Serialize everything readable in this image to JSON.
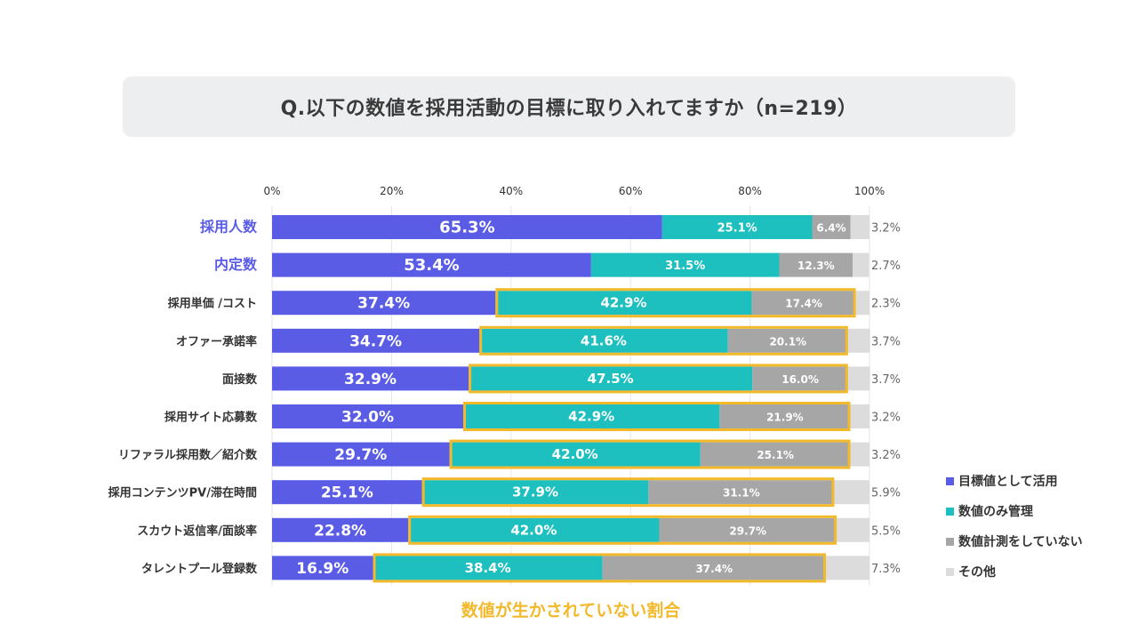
{
  "title": "Q.以下の数値を採用活動の目標に取り入れてますか（n=219）",
  "highlight_note": "数値が生かされていない割合",
  "chart_data": {
    "type": "bar",
    "orientation": "horizontal",
    "stacked": true,
    "title": "Q.以下の数値を採用活動の目標に取り入れてますか（n=219）",
    "xlim": [
      0,
      100
    ],
    "x_ticks": [
      "0%",
      "20%",
      "40%",
      "60%",
      "80%",
      "100%"
    ],
    "legend_position": "right",
    "categories": [
      "採用人数",
      "内定数",
      "採用単価 /コスト",
      "オファー承諾率",
      "面接数",
      "採用サイト応募数",
      "リファラル採用数／紹介数",
      "採用コンテンツPV/滞在時間",
      "スカウト返信率/面談率",
      "タレントプール登録数"
    ],
    "highlighted_categories": [
      "採用人数",
      "内定数"
    ],
    "series": [
      {
        "name": "目標値として活用",
        "color": "#5a5ce6",
        "values": [
          65.3,
          53.4,
          37.4,
          34.7,
          32.9,
          32.0,
          29.7,
          25.1,
          22.8,
          16.9
        ],
        "labels": [
          "65.3%",
          "53.4%",
          "37.4%",
          "34.7%",
          "32.9%",
          "32.0%",
          "29.7%",
          "25.1%",
          "22.8%",
          "16.9%"
        ]
      },
      {
        "name": "数値のみ管理",
        "color": "#1dbfbf",
        "values": [
          25.1,
          31.5,
          42.9,
          41.6,
          47.5,
          42.9,
          42.0,
          37.9,
          42.0,
          38.4
        ],
        "labels": [
          "25.1%",
          "31.5%",
          "42.9%",
          "41.6%",
          "47.5%",
          "42.9%",
          "42.0%",
          "37.9%",
          "42.0%",
          "38.4%"
        ]
      },
      {
        "name": "数値計測をしていない",
        "color": "#a6a6a6",
        "values": [
          6.4,
          12.3,
          17.4,
          20.1,
          16.0,
          21.9,
          25.1,
          31.1,
          29.7,
          37.4
        ],
        "labels": [
          "6.4%",
          "12.3%",
          "17.4%",
          "20.1%",
          "16.0%",
          "21.9%",
          "25.1%",
          "31.1%",
          "29.7%",
          "37.4%"
        ]
      },
      {
        "name": "その他",
        "color": "#dcdcdc",
        "values": [
          3.2,
          2.7,
          2.3,
          3.7,
          3.7,
          3.2,
          3.2,
          5.9,
          5.5,
          7.3
        ],
        "labels": [
          "3.2%",
          "2.7%",
          "2.3%",
          "3.7%",
          "3.7%",
          "3.2%",
          "3.2%",
          "5.9%",
          "5.5%",
          "7.3%"
        ]
      }
    ],
    "outline_color": "#f2b92a",
    "category_label_color": "#333333",
    "highlight_label_color": "#5a5ce6",
    "tick_label_color": "#333333",
    "outside_label_color": "#666666"
  }
}
